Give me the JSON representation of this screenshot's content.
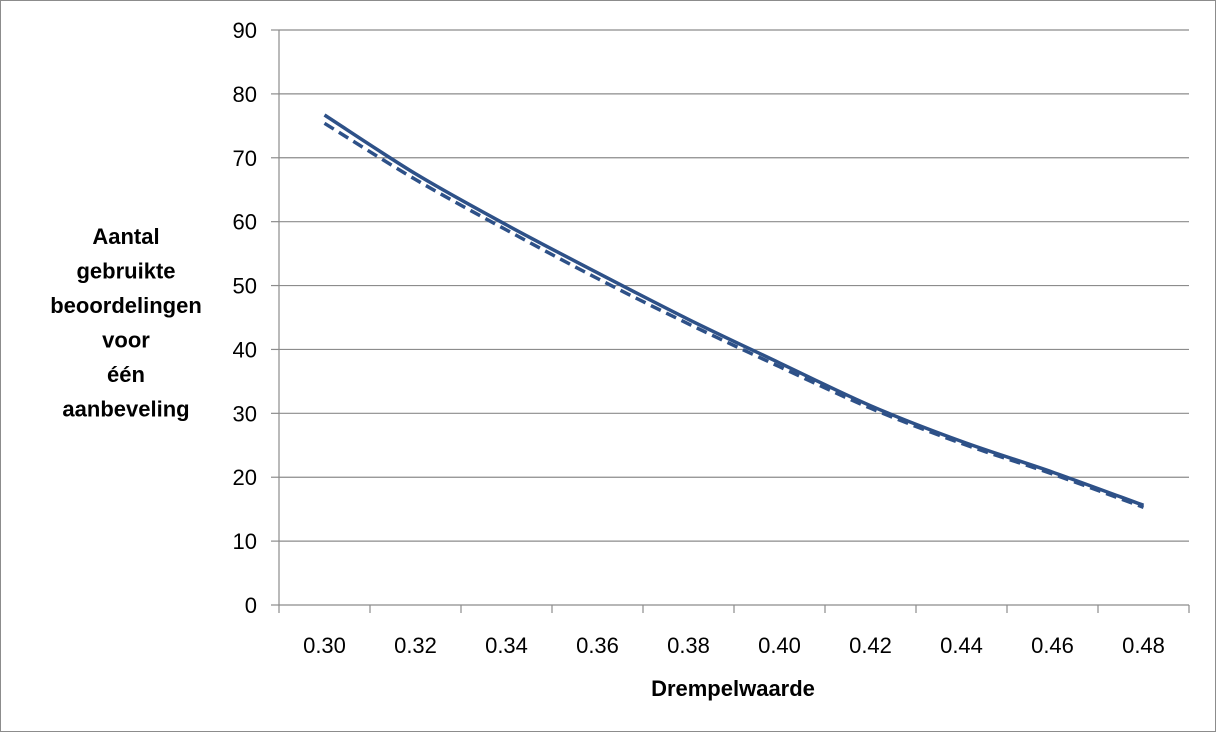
{
  "chart_data": {
    "type": "line",
    "title": "",
    "xlabel": "Drempelwaarde",
    "ylabel_lines": [
      "Aantal",
      "gebruikte",
      "beoordelingen",
      "voor",
      "één",
      "aanbeveling"
    ],
    "x_categories": [
      "0.30",
      "0.32",
      "0.34",
      "0.36",
      "0.38",
      "0.40",
      "0.42",
      "0.44",
      "0.46",
      "0.48"
    ],
    "ylim": [
      0,
      90
    ],
    "yticks": [
      "0",
      "10",
      "20",
      "30",
      "40",
      "50",
      "60",
      "70",
      "80",
      "90"
    ],
    "grid": "horizontal",
    "legend": "none",
    "colors": {
      "series": "#2e5188",
      "grid": "#8c8c8c",
      "axis": "#8c8c8c"
    },
    "series": [
      {
        "style": "solid",
        "x": [
          0.3,
          0.32,
          0.34,
          0.36,
          0.38,
          0.4,
          0.42,
          0.44,
          0.46,
          0.48
        ],
        "values": [
          76.7,
          67.5,
          59.5,
          52.0,
          44.7,
          37.9,
          31.2,
          25.6,
          20.8,
          15.6
        ]
      },
      {
        "style": "dashed",
        "x": [
          0.3,
          0.32,
          0.34,
          0.36,
          0.38,
          0.4,
          0.42,
          0.44,
          0.46,
          0.48
        ],
        "values": [
          75.4,
          66.6,
          58.7,
          51.1,
          44.0,
          37.3,
          30.8,
          25.3,
          20.5,
          15.3
        ]
      }
    ]
  }
}
